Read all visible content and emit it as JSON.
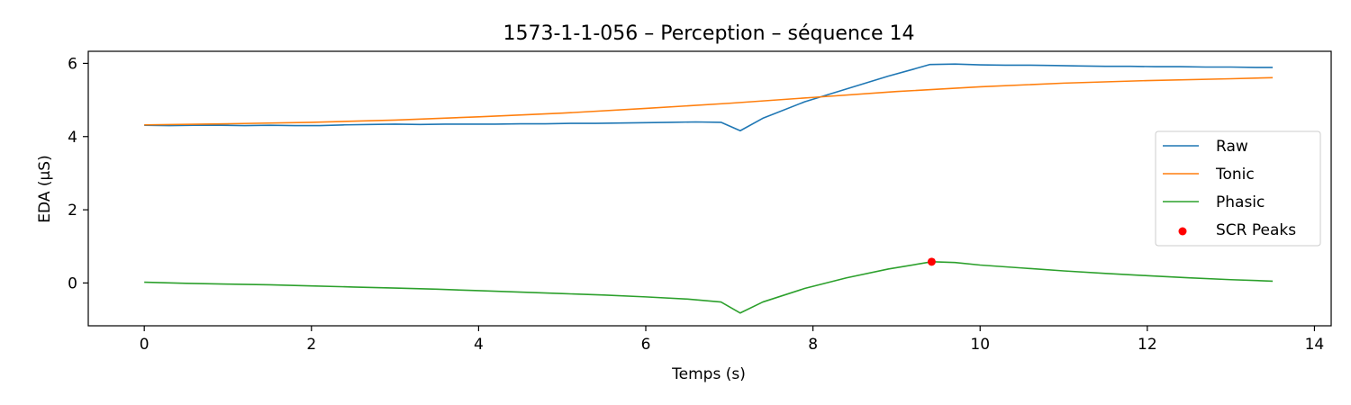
{
  "chart_data": {
    "type": "line",
    "title": "1573-1-1-056 – Perception – séquence 14",
    "xlabel": "Temps (s)",
    "ylabel": "EDA (µS)",
    "xlim": [
      -0.67,
      14.2
    ],
    "ylim": [
      -1.17,
      6.33
    ],
    "xticks": [
      0,
      2,
      4,
      6,
      8,
      10,
      12,
      14
    ],
    "yticks": [
      0,
      2,
      4,
      6
    ],
    "grid": false,
    "legend_position": "center-right",
    "series": [
      {
        "name": "Raw",
        "color": "#1f77b4",
        "x": [
          0,
          0.3,
          0.6,
          0.9,
          1.2,
          1.5,
          1.8,
          2.1,
          2.4,
          2.7,
          3.0,
          3.3,
          3.6,
          3.9,
          4.2,
          4.5,
          4.8,
          5.1,
          5.4,
          5.7,
          6.0,
          6.3,
          6.6,
          6.9,
          7.13,
          7.4,
          7.9,
          8.4,
          8.9,
          9.2,
          9.4,
          9.7,
          10.0,
          10.3,
          10.6,
          10.9,
          11.2,
          11.5,
          11.8,
          12.1,
          12.4,
          12.7,
          13.0,
          13.3,
          13.5
        ],
        "y": [
          4.31,
          4.3,
          4.31,
          4.31,
          4.3,
          4.31,
          4.3,
          4.3,
          4.32,
          4.33,
          4.34,
          4.33,
          4.34,
          4.34,
          4.34,
          4.35,
          4.35,
          4.36,
          4.36,
          4.37,
          4.38,
          4.39,
          4.4,
          4.39,
          4.16,
          4.5,
          4.95,
          5.3,
          5.65,
          5.84,
          5.97,
          5.98,
          5.96,
          5.95,
          5.95,
          5.94,
          5.93,
          5.92,
          5.92,
          5.91,
          5.91,
          5.9,
          5.9,
          5.89,
          5.89
        ]
      },
      {
        "name": "Tonic",
        "color": "#ff7f0e",
        "x": [
          0,
          1,
          2,
          3,
          4,
          5,
          6,
          7,
          8,
          9,
          10,
          11,
          12,
          13,
          13.5
        ],
        "y": [
          4.32,
          4.35,
          4.39,
          4.45,
          4.54,
          4.64,
          4.77,
          4.91,
          5.07,
          5.23,
          5.36,
          5.46,
          5.53,
          5.58,
          5.61
        ]
      },
      {
        "name": "Phasic",
        "color": "#2ca02c",
        "x": [
          0,
          0.5,
          1.0,
          1.5,
          2.0,
          2.5,
          3.0,
          3.5,
          4.0,
          4.5,
          5.0,
          5.5,
          6.0,
          6.5,
          6.9,
          7.13,
          7.4,
          7.9,
          8.4,
          8.9,
          9.42,
          9.7,
          10.0,
          10.5,
          11.0,
          11.5,
          12.0,
          12.5,
          13.0,
          13.5
        ],
        "y": [
          0.02,
          -0.01,
          -0.03,
          -0.05,
          -0.08,
          -0.11,
          -0.14,
          -0.17,
          -0.21,
          -0.25,
          -0.29,
          -0.33,
          -0.38,
          -0.44,
          -0.52,
          -0.82,
          -0.52,
          -0.15,
          0.14,
          0.38,
          0.58,
          0.56,
          0.49,
          0.41,
          0.33,
          0.26,
          0.2,
          0.14,
          0.09,
          0.05
        ]
      },
      {
        "name": "SCR Peaks",
        "color": "#ff0000",
        "kind": "scatter",
        "x": [
          9.42
        ],
        "y": [
          0.58
        ]
      }
    ]
  }
}
